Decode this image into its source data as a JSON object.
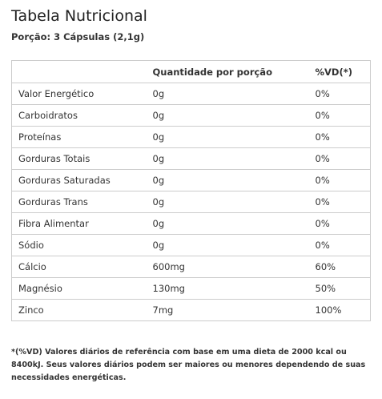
{
  "header": {
    "title": "Tabela Nutricional",
    "subtitle": "Porção: 3 Cápsulas (2,1g)"
  },
  "table": {
    "columns": [
      "Quantidade por porção",
      "%VD(*)"
    ],
    "rows": [
      [
        "Valor Energético",
        "0g",
        "0%"
      ],
      [
        "Carboidratos",
        "0g",
        "0%"
      ],
      [
        "Proteínas",
        "0g",
        "0%"
      ],
      [
        "Gorduras Totais",
        "0g",
        "0%"
      ],
      [
        "Gorduras Saturadas",
        "0g",
        "0%"
      ],
      [
        "Gorduras Trans",
        "0g",
        "0%"
      ],
      [
        "Fibra Alimentar",
        "0g",
        "0%"
      ],
      [
        "Sódio",
        "0g",
        "0%"
      ],
      [
        "Cálcio",
        "600mg",
        "60%"
      ],
      [
        "Magnésio",
        "130mg",
        "50%"
      ],
      [
        "Zinco",
        "7mg",
        "100%"
      ]
    ]
  },
  "footnote": "*(%VD) Valores diários de referência com base em uma dieta de 2000 kcal ou 8400kJ. Seus valores diários podem ser maiores ou menores dependendo de suas necessidades energéticas."
}
